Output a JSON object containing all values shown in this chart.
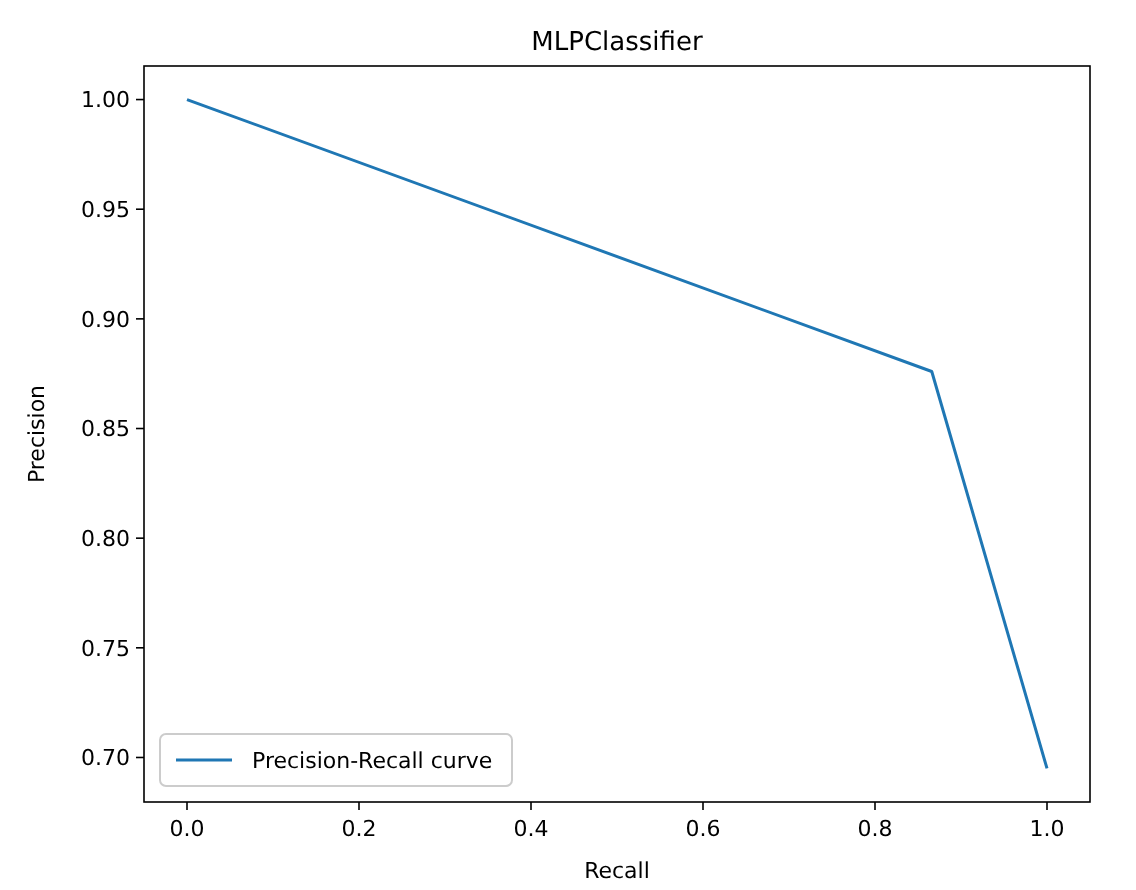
{
  "chart_data": {
    "type": "line",
    "title": "MLPClassifier",
    "xlabel": "Recall",
    "ylabel": "Precision",
    "x": [
      0,
      0.866,
      1
    ],
    "series": [
      {
        "name": "Precision-Recall curve",
        "color": "#1f77b4",
        "values": [
          1,
          0.876,
          0.695
        ]
      }
    ],
    "xlim": [
      -0.05,
      1.05
    ],
    "xticks": [
      {
        "value": 0,
        "label": "0.0"
      },
      {
        "value": 0.2,
        "label": "0.2"
      },
      {
        "value": 0.4,
        "label": "0.4"
      },
      {
        "value": 0.6,
        "label": "0.6"
      },
      {
        "value": 0.8,
        "label": "0.8"
      },
      {
        "value": 1,
        "label": "1.0"
      }
    ],
    "ylim": [
      0.6797,
      1.0153
    ],
    "yticks": [
      {
        "value": 0.7,
        "label": "0.70"
      },
      {
        "value": 0.75,
        "label": "0.75"
      },
      {
        "value": 0.8,
        "label": "0.80"
      },
      {
        "value": 0.85,
        "label": "0.85"
      },
      {
        "value": 0.9,
        "label": "0.90"
      },
      {
        "value": 0.95,
        "label": "0.95"
      },
      {
        "value": 1,
        "label": "1.00"
      }
    ],
    "legend": "bottom left",
    "grid": false,
    "line_style": "solid",
    "marker": "none"
  }
}
